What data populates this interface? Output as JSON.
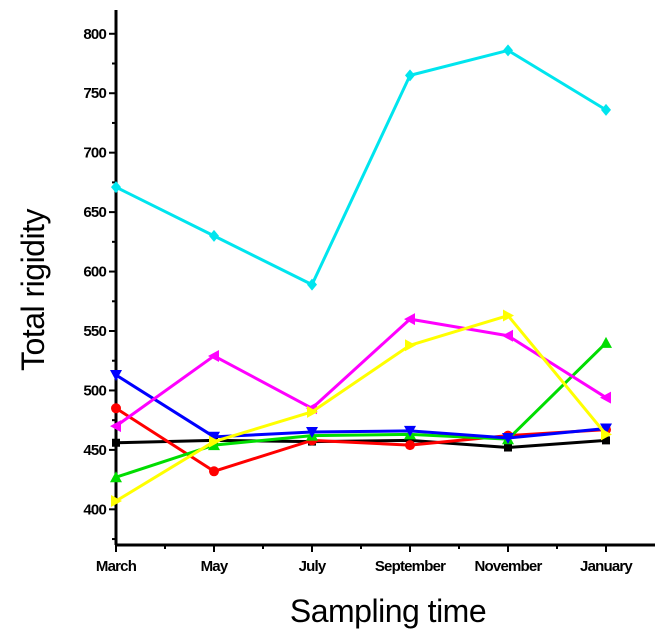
{
  "chart_data": {
    "type": "line",
    "xlabel": "Sampling time",
    "ylabel": "Total rigidity",
    "categories": [
      "March",
      "May",
      "July",
      "September",
      "November",
      "January"
    ],
    "ylim": [
      370,
      820
    ],
    "yticks": [
      400,
      450,
      500,
      550,
      600,
      650,
      700,
      750,
      800
    ],
    "grid": false,
    "legend": "none",
    "series": [
      {
        "color": "#000000",
        "marker": "square",
        "values": [
          456,
          458,
          457,
          458,
          452,
          458
        ]
      },
      {
        "color": "#ff0000",
        "marker": "circle",
        "values": [
          485,
          432,
          458,
          454,
          462,
          467
        ]
      },
      {
        "color": "#00dd00",
        "marker": "triangle-up",
        "values": [
          427,
          454,
          462,
          463,
          459,
          540
        ]
      },
      {
        "color": "#0000ff",
        "marker": "triangle-down",
        "values": [
          513,
          461,
          465,
          466,
          460,
          468
        ]
      },
      {
        "color": "#00e5ee",
        "marker": "diamond",
        "values": [
          671,
          630,
          589,
          765,
          786,
          736
        ]
      },
      {
        "color": "#ff00ff",
        "marker": "triangle-left",
        "values": [
          470,
          529,
          485,
          560,
          546,
          494
        ]
      },
      {
        "color": "#ffff00",
        "marker": "triangle-right",
        "values": [
          407,
          457,
          482,
          538,
          563,
          463
        ]
      }
    ]
  }
}
